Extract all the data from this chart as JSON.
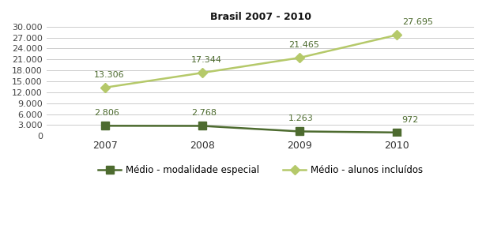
{
  "title": "Brasil 2007 - 2010",
  "years": [
    2007,
    2008,
    2009,
    2010
  ],
  "series_especial": [
    2806,
    2768,
    1263,
    972
  ],
  "series_incluidos": [
    13306,
    17344,
    21465,
    27695
  ],
  "labels_especial": [
    "2.806",
    "2.768",
    "1.263",
    "972"
  ],
  "labels_incluidos": [
    "13.306",
    "17.344",
    "21.465",
    "27.695"
  ],
  "color_especial": "#4d6b2f",
  "color_incluidos": "#b5c96a",
  "ylim": [
    0,
    31000
  ],
  "yticks": [
    0,
    3000,
    6000,
    9000,
    12000,
    15000,
    18000,
    21000,
    24000,
    27000,
    30000
  ],
  "ytick_labels": [
    "0",
    "3.000",
    "6.000",
    "9.000",
    "12.000",
    "15.000",
    "18.000",
    "21.000",
    "24.000",
    "27.000",
    "30.000"
  ],
  "legend_especial": "Médio - modalidade especial",
  "legend_incluidos": "Médio - alunos incluídos",
  "bg_color": "#ffffff",
  "xlim": [
    2006.4,
    2010.8
  ]
}
